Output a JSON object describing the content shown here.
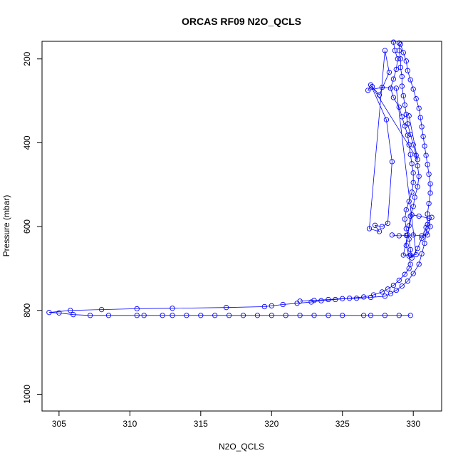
{
  "chart_data": {
    "type": "scatter",
    "title": "ORCAS RF09 N2O_QCLS",
    "xlabel": "N2O_QCLS",
    "ylabel": "Pressure (mbar)",
    "xlim": [
      303.8,
      332.0
    ],
    "ylim": [
      1040,
      158
    ],
    "y_reversed": true,
    "xticks": [
      305,
      310,
      315,
      320,
      325,
      330
    ],
    "yticks": [
      200,
      400,
      600,
      800,
      1000
    ],
    "grid": false,
    "legend": "none",
    "marker": "open-circle",
    "line": true,
    "color": "#0000ff",
    "series": [
      {
        "values": [
          [
            329.8,
            812
          ],
          [
            329.0,
            812
          ],
          [
            328.0,
            812
          ],
          [
            327.0,
            812
          ],
          [
            326.5,
            812
          ],
          [
            325.0,
            812
          ],
          [
            324.0,
            812
          ],
          [
            323.0,
            812
          ],
          [
            322.0,
            812
          ],
          [
            321.0,
            812
          ],
          [
            320.0,
            812
          ],
          [
            319.0,
            812
          ],
          [
            318.0,
            812
          ],
          [
            317.0,
            812
          ],
          [
            316.0,
            812
          ],
          [
            315.0,
            812
          ],
          [
            314.0,
            812
          ],
          [
            313.0,
            812
          ],
          [
            312.3,
            812
          ],
          [
            311.0,
            812
          ],
          [
            310.5,
            812
          ],
          [
            308.5,
            812
          ],
          [
            307.2,
            812
          ],
          [
            306.0,
            810
          ],
          [
            305.0,
            806
          ],
          [
            304.3,
            805
          ],
          [
            305.8,
            800
          ],
          [
            308.0,
            798
          ],
          [
            310.5,
            796
          ],
          [
            313.0,
            795
          ],
          [
            316.8,
            793
          ],
          [
            319.5,
            791
          ],
          [
            320.0,
            789
          ],
          [
            320.8,
            786
          ],
          [
            321.8,
            783
          ],
          [
            322.8,
            780
          ],
          [
            323.5,
            777
          ],
          [
            324.5,
            774
          ],
          [
            325.5,
            771
          ],
          [
            326.5,
            768
          ],
          [
            327.2,
            763
          ],
          [
            327.8,
            756
          ],
          [
            328.2,
            749
          ],
          [
            328.6,
            740
          ],
          [
            329.0,
            728
          ],
          [
            329.4,
            714
          ],
          [
            329.7,
            700
          ],
          [
            329.8,
            690
          ],
          [
            329.7,
            670
          ],
          [
            329.5,
            645
          ],
          [
            329.6,
            620
          ],
          [
            329.7,
            598
          ],
          [
            329.8,
            575
          ],
          [
            330.0,
            552
          ],
          [
            330.1,
            530
          ],
          [
            330.3,
            505
          ],
          [
            330.4,
            480
          ],
          [
            330.3,
            455
          ],
          [
            330.2,
            430
          ],
          [
            330.0,
            405
          ],
          [
            329.8,
            380
          ],
          [
            329.6,
            355
          ],
          [
            329.5,
            332
          ],
          [
            329.4,
            310
          ],
          [
            329.3,
            288
          ],
          [
            329.2,
            265
          ],
          [
            329.2,
            242
          ],
          [
            329.1,
            220
          ],
          [
            329.1,
            200
          ],
          [
            329.0,
            180
          ],
          [
            329.0,
            162
          ]
        ]
      },
      {
        "values": [
          [
            329.1,
            165
          ],
          [
            329.3,
            185
          ],
          [
            329.5,
            205
          ],
          [
            329.6,
            228
          ],
          [
            329.8,
            250
          ],
          [
            330.0,
            272
          ],
          [
            330.2,
            295
          ],
          [
            330.4,
            318
          ],
          [
            330.5,
            340
          ],
          [
            330.6,
            362
          ],
          [
            330.7,
            385
          ],
          [
            330.8,
            408
          ],
          [
            330.9,
            430
          ],
          [
            331.0,
            452
          ],
          [
            331.1,
            475
          ],
          [
            331.2,
            498
          ],
          [
            331.2,
            520
          ],
          [
            331.1,
            545
          ],
          [
            331.0,
            570
          ],
          [
            331.0,
            595
          ],
          [
            330.9,
            615
          ],
          [
            330.8,
            640
          ],
          [
            330.6,
            665
          ],
          [
            330.4,
            690
          ],
          [
            330.0,
            712
          ],
          [
            329.6,
            730
          ],
          [
            329.2,
            742
          ],
          [
            328.8,
            752
          ],
          [
            328.4,
            760
          ],
          [
            328.0,
            766
          ],
          [
            327.0,
            769
          ],
          [
            326.0,
            771
          ],
          [
            325.0,
            772
          ],
          [
            324.0,
            774
          ],
          [
            323.0,
            776
          ],
          [
            322.0,
            778
          ]
        ]
      },
      {
        "values": [
          [
            328.6,
            160
          ],
          [
            328.7,
            180
          ],
          [
            328.9,
            200
          ],
          [
            328.8,
            225
          ],
          [
            328.6,
            248
          ],
          [
            328.4,
            270
          ],
          [
            328.6,
            292
          ],
          [
            329.0,
            315
          ],
          [
            329.2,
            338
          ],
          [
            329.4,
            360
          ],
          [
            329.6,
            382
          ],
          [
            329.7,
            405
          ],
          [
            329.8,
            428
          ],
          [
            329.9,
            450
          ],
          [
            330.0,
            472
          ],
          [
            330.0,
            495
          ],
          [
            329.9,
            518
          ],
          [
            329.7,
            540
          ],
          [
            329.5,
            560
          ],
          [
            329.4,
            582
          ],
          [
            329.5,
            605
          ],
          [
            329.7,
            630
          ],
          [
            329.8,
            655
          ],
          [
            329.9,
            675
          ],
          [
            330.3,
            652
          ],
          [
            330.6,
            628
          ],
          [
            330.9,
            602
          ],
          [
            331.3,
            578
          ]
        ]
      },
      {
        "values": [
          [
            328.5,
            620
          ],
          [
            329.0,
            622
          ],
          [
            329.5,
            621
          ],
          [
            330.0,
            620
          ],
          [
            330.6,
            622
          ],
          [
            331.0,
            620
          ],
          [
            331.2,
            600
          ],
          [
            331.1,
            580
          ],
          [
            330.4,
            575
          ],
          [
            329.9,
            572
          ],
          [
            329.3,
            668
          ],
          [
            329.8,
            668
          ],
          [
            330.2,
            667
          ],
          [
            328.8,
            270
          ],
          [
            327.8,
            268
          ],
          [
            326.8,
            275
          ],
          [
            327.0,
            262
          ],
          [
            328.1,
            345
          ],
          [
            328.5,
            445
          ],
          [
            328.2,
            592
          ],
          [
            327.8,
            600
          ],
          [
            327.3,
            597
          ],
          [
            327.6,
            612
          ],
          [
            326.9,
            605
          ],
          [
            328.0,
            180
          ],
          [
            328.3,
            232
          ],
          [
            327.6,
            286
          ],
          [
            327.1,
            266
          ],
          [
            330.3,
            440
          ],
          [
            329.7,
            336
          ]
        ]
      }
    ]
  }
}
